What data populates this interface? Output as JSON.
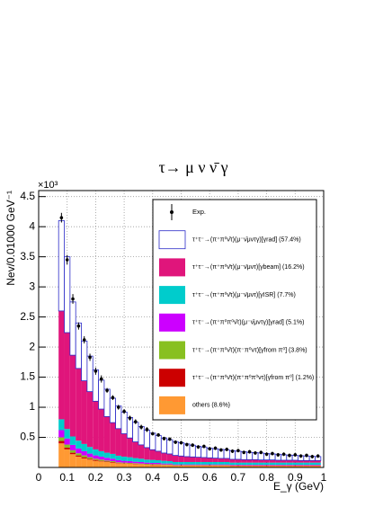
{
  "chart_data": {
    "type": "stacked_histogram",
    "title": "τ→ μ ν ν̄ γ",
    "y_label": "Nev/0.01000 GeV⁻¹",
    "y_multiplier": "×10³",
    "x_label": "E_γ (GeV)",
    "xlim": [
      0,
      1
    ],
    "ylim": [
      0,
      4.6
    ],
    "xticks": [
      0,
      0.1,
      0.2,
      0.3,
      0.4,
      0.5,
      0.6,
      0.7,
      0.8,
      0.9,
      1
    ],
    "yticks": [
      0.5,
      1,
      1.5,
      2,
      2.5,
      3,
      3.5,
      4,
      4.5
    ],
    "grid": true,
    "legend": "upper right",
    "bins": [
      0.07,
      0.09,
      0.11,
      0.13,
      0.15,
      0.17,
      0.19,
      0.21,
      0.23,
      0.25,
      0.27,
      0.29,
      0.31,
      0.33,
      0.35,
      0.37,
      0.39,
      0.41,
      0.43,
      0.45,
      0.47,
      0.49,
      0.51,
      0.53,
      0.55,
      0.57,
      0.59,
      0.61,
      0.63,
      0.65,
      0.67,
      0.69,
      0.71,
      0.73,
      0.75,
      0.77,
      0.79,
      0.81,
      0.83,
      0.85,
      0.87,
      0.89,
      0.91,
      0.93,
      0.95,
      0.97,
      0.99
    ],
    "data": {
      "name": "Exp.",
      "color": "#000000",
      "values": [
        4.15,
        3.45,
        2.8,
        2.35,
        2.12,
        1.83,
        1.6,
        1.47,
        1.28,
        1.16,
        1.0,
        0.93,
        0.82,
        0.76,
        0.67,
        0.63,
        0.56,
        0.54,
        0.48,
        0.47,
        0.42,
        0.41,
        0.38,
        0.37,
        0.34,
        0.35,
        0.31,
        0.32,
        0.29,
        0.3,
        0.27,
        0.28,
        0.25,
        0.26,
        0.24,
        0.25,
        0.22,
        0.23,
        0.21,
        0.22,
        0.2,
        0.21,
        0.19,
        0.2,
        0.18,
        0.19
      ],
      "errors": [
        0.08,
        0.08,
        0.08,
        0.06,
        0.06,
        0.06,
        0.06,
        0.06,
        0.04,
        0.04,
        0.04,
        0.04,
        0.04,
        0.04,
        0.04,
        0.04,
        0.03,
        0.03,
        0.03,
        0.03,
        0.03,
        0.03,
        0.03,
        0.03,
        0.03,
        0.03,
        0.03,
        0.03,
        0.03,
        0.03,
        0.03,
        0.03,
        0.03,
        0.03,
        0.03,
        0.03,
        0.03,
        0.03,
        0.03,
        0.03,
        0.03,
        0.03,
        0.03,
        0.03,
        0.03,
        0.03
      ]
    },
    "series": [
      {
        "name": "τ⁺τ⁻→(π⁺π⁰ν̄τ)(μ⁻ν̄μντγ)[γrad] (57.4%)",
        "color": "#ffffff",
        "edge_color": "#2b2bc8",
        "values": [
          1.5,
          1.26,
          0.885,
          0.755,
          0.66,
          0.59,
          0.52,
          0.48,
          0.455,
          0.405,
          0.375,
          0.36,
          0.34,
          0.325,
          0.305,
          0.29,
          0.275,
          0.26,
          0.25,
          0.235,
          0.23,
          0.22,
          0.21,
          0.195,
          0.18,
          0.175,
          0.16,
          0.155,
          0.15,
          0.14,
          0.145,
          0.135,
          0.13,
          0.12,
          0.115,
          0.115,
          0.105,
          0.1,
          0.1,
          0.09,
          0.085,
          0.08,
          0.08,
          0.075,
          0.07,
          0.065
        ]
      },
      {
        "name": "τ⁺τ⁻→(π⁺π⁰ν̄τ)(μ⁻ν̄μντ)[γbeam] (16.2%)",
        "color": "#e0157b",
        "values": [
          1.8,
          1.6,
          1.35,
          1.2,
          1.05,
          0.92,
          0.8,
          0.7,
          0.6,
          0.52,
          0.45,
          0.38,
          0.32,
          0.27,
          0.23,
          0.2,
          0.17,
          0.15,
          0.13,
          0.12,
          0.11,
          0.1,
          0.09,
          0.085,
          0.08,
          0.075,
          0.07,
          0.065,
          0.06,
          0.06,
          0.055,
          0.055,
          0.05,
          0.05,
          0.05,
          0.045,
          0.045,
          0.045,
          0.04,
          0.04,
          0.04,
          0.04,
          0.035,
          0.035,
          0.035,
          0.035
        ]
      },
      {
        "name": "τ⁺τ⁻→(π⁺π⁰ν̄τ)(μ⁻ν̄μντ)[γISR] (7.7%)",
        "color": "#00cccc",
        "values": [
          0.18,
          0.16,
          0.14,
          0.13,
          0.12,
          0.11,
          0.1,
          0.09,
          0.085,
          0.08,
          0.075,
          0.07,
          0.065,
          0.06,
          0.055,
          0.05,
          0.05,
          0.045,
          0.045,
          0.04,
          0.04,
          0.04,
          0.04,
          0.04,
          0.04,
          0.04,
          0.04,
          0.04,
          0.04,
          0.04,
          0.035,
          0.035,
          0.035,
          0.035,
          0.035,
          0.035,
          0.035,
          0.035,
          0.035,
          0.035,
          0.035,
          0.035,
          0.035,
          0.035,
          0.035,
          0.035
        ]
      },
      {
        "name": "τ⁺τ⁻→(π⁺π⁰π⁰ν̄τ)(μ⁻ν̄μντγ)[γrad] (5.1%)",
        "color": "#cc00ff",
        "values": [
          0.12,
          0.1,
          0.09,
          0.08,
          0.07,
          0.06,
          0.055,
          0.05,
          0.045,
          0.04,
          0.035,
          0.03,
          0.03,
          0.025,
          0.025,
          0.02,
          0.02,
          0.02,
          0.015,
          0.015,
          0.01,
          0.01,
          0.01,
          0.01,
          0.01,
          0.01,
          0.01,
          0.01,
          0.01,
          0.01,
          0.01,
          0.01,
          0.01,
          0.01,
          0.01,
          0.01,
          0.01,
          0.01,
          0.01,
          0.01,
          0.01,
          0.01,
          0.01,
          0.01,
          0.01,
          0.01
        ]
      },
      {
        "name": "τ⁺τ⁻→(π⁺π⁰ν̄τ)(π⁻π⁰ντ)[γfrom π⁰] (3.8%)",
        "color": "#88c020",
        "values": [
          0.06,
          0.05,
          0.04,
          0.035,
          0.03,
          0.025,
          0.02,
          0.02,
          0.015,
          0.015,
          0.01,
          0.01,
          0.01,
          0.01,
          0.01,
          0.01,
          0.01,
          0.01,
          0.01,
          0.01,
          0.005,
          0.005,
          0.005,
          0.005,
          0.005,
          0.005,
          0.005,
          0.005,
          0.005,
          0.005,
          0.005,
          0.005,
          0.005,
          0.005,
          0.005,
          0.005,
          0.005,
          0.005,
          0.005,
          0.005,
          0.005,
          0.005,
          0.005,
          0.005,
          0.005,
          0.005
        ]
      },
      {
        "name": "τ⁺τ⁻→(π⁺π⁰ν̄τ)(π⁺π⁰π⁰ντ)[γfrom π⁰] (1.2%)",
        "color": "#cc0000",
        "values": [
          0.04,
          0.03,
          0.025,
          0.02,
          0.02,
          0.015,
          0.015,
          0.01,
          0.01,
          0.01,
          0.005,
          0.005,
          0.005,
          0.005,
          0.005,
          0.005,
          0.005,
          0.005,
          0.005,
          0.005,
          0.005,
          0.005,
          0.005,
          0.005,
          0.005,
          0.005,
          0.005,
          0.005,
          0.005,
          0.005,
          0.005,
          0.005,
          0.005,
          0.005,
          0.005,
          0.005,
          0.005,
          0.005,
          0.005,
          0.005,
          0.005,
          0.005,
          0.005,
          0.005,
          0.005,
          0.005
        ]
      },
      {
        "name": "others (8.6%)",
        "color": "#ff9933",
        "values": [
          0.4,
          0.3,
          0.22,
          0.18,
          0.15,
          0.13,
          0.11,
          0.1,
          0.09,
          0.08,
          0.07,
          0.065,
          0.06,
          0.055,
          0.05,
          0.045,
          0.04,
          0.04,
          0.035,
          0.035,
          0.03,
          0.03,
          0.03,
          0.03,
          0.03,
          0.03,
          0.03,
          0.03,
          0.03,
          0.03,
          0.025,
          0.025,
          0.025,
          0.025,
          0.025,
          0.025,
          0.025,
          0.025,
          0.025,
          0.025,
          0.025,
          0.025,
          0.025,
          0.025,
          0.025,
          0.025
        ]
      }
    ]
  }
}
